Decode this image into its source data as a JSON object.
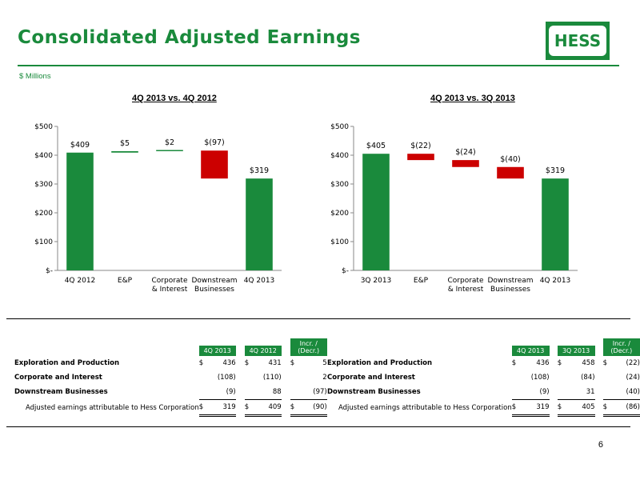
{
  "header": {
    "title": "Consolidated Adjusted Earnings",
    "logo_text": "HESS",
    "units_note": "$ Millions"
  },
  "colors": {
    "brand_green": "#1a8a3c",
    "bar_green": "#1a8a3c",
    "bar_red": "#cc0000"
  },
  "page_number": "6",
  "chart_data": [
    {
      "type": "bar",
      "subtype": "waterfall",
      "title": "4Q 2013 vs. 4Q 2012",
      "categories": [
        "4Q 2012",
        "E&P",
        "Corporate\n& Interest",
        "Downstream\nBusinesses",
        "4Q 2013"
      ],
      "values": [
        409,
        5,
        2,
        -97,
        319
      ],
      "data_labels": [
        "$409",
        "$5",
        "$2",
        "$(97)",
        "$319"
      ],
      "ylim": [
        0,
        500
      ],
      "yticks": [
        0,
        100,
        200,
        300,
        400,
        500
      ],
      "ytick_labels": [
        "$-",
        "$100",
        "$200",
        "$300",
        "$400",
        "$500"
      ],
      "grid": false
    },
    {
      "type": "bar",
      "subtype": "waterfall",
      "title": "4Q 2013 vs. 3Q 2013",
      "categories": [
        "3Q 2013",
        "E&P",
        "Corporate\n& Interest",
        "Downstream\nBusinesses",
        "4Q 2013"
      ],
      "values": [
        405,
        -22,
        -24,
        -40,
        319
      ],
      "data_labels": [
        "$405",
        "$(22)",
        "$(24)",
        "$(40)",
        "$319"
      ],
      "ylim": [
        0,
        500
      ],
      "yticks": [
        0,
        100,
        200,
        300,
        400,
        500
      ],
      "ytick_labels": [
        "$-",
        "$100",
        "$200",
        "$300",
        "$400",
        "$500"
      ],
      "grid": false
    }
  ],
  "tables": [
    {
      "headers": [
        "4Q 2013",
        "4Q 2012",
        "Incr. /\n(Decr.)"
      ],
      "rows": [
        {
          "label": "Exploration and Production",
          "cells": [
            [
              "$",
              "436"
            ],
            [
              "$",
              "431"
            ],
            [
              "$",
              "5"
            ]
          ]
        },
        {
          "label": "Corporate and Interest",
          "cells": [
            [
              "",
              "(108)"
            ],
            [
              "",
              "(110)"
            ],
            [
              "",
              "2"
            ]
          ]
        },
        {
          "label": "Downstream Businesses",
          "cells": [
            [
              "",
              "(9)"
            ],
            [
              "",
              "88"
            ],
            [
              "",
              "(97)"
            ]
          ]
        },
        {
          "label": "Adjusted earnings attributable to Hess Corporation",
          "cells": [
            [
              "$",
              "319"
            ],
            [
              "$",
              "409"
            ],
            [
              "$",
              "(90)"
            ]
          ]
        }
      ]
    },
    {
      "headers": [
        "4Q 2013",
        "3Q 2013",
        "Incr. /\n(Decr.)"
      ],
      "rows": [
        {
          "label": "Exploration and Production",
          "cells": [
            [
              "$",
              "436"
            ],
            [
              "$",
              "458"
            ],
            [
              "$",
              "(22)"
            ]
          ]
        },
        {
          "label": "Corporate and Interest",
          "cells": [
            [
              "",
              "(108)"
            ],
            [
              "",
              "(84)"
            ],
            [
              "",
              "(24)"
            ]
          ]
        },
        {
          "label": "Downstream Businesses",
          "cells": [
            [
              "",
              "(9)"
            ],
            [
              "",
              "31"
            ],
            [
              "",
              "(40)"
            ]
          ]
        },
        {
          "label": "Adjusted earnings attributable to Hess Corporation",
          "cells": [
            [
              "$",
              "319"
            ],
            [
              "$",
              "405"
            ],
            [
              "$",
              "(86)"
            ]
          ]
        }
      ]
    }
  ]
}
